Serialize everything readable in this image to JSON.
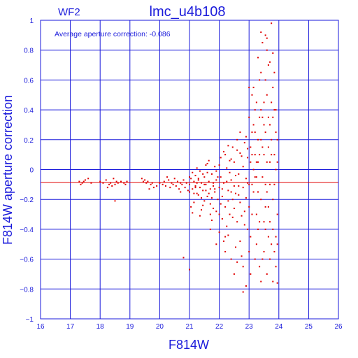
{
  "chart_data": {
    "type": "scatter",
    "title": "lmc_u4b108",
    "panel_label": "WF2",
    "annotation": "Average aperture correction: -0.086",
    "xlabel": "F814W",
    "ylabel": "F814W aperture correction",
    "xlim": [
      16,
      26
    ],
    "ylim": [
      -1,
      1
    ],
    "x_ticks": [
      16,
      17,
      18,
      19,
      20,
      21,
      22,
      23,
      24,
      25,
      26
    ],
    "y_ticks": [
      -1,
      -0.8,
      -0.6,
      -0.4,
      -0.2,
      0,
      0.2,
      0.4,
      0.6,
      0.8,
      1
    ],
    "x_tick_labels": [
      "16",
      "17",
      "18",
      "19",
      "20",
      "21",
      "22",
      "23",
      "24",
      "25",
      "26"
    ],
    "y_tick_labels": [
      "−1",
      "−0.8",
      "−0.6",
      "−0.4",
      "−0.2",
      "0",
      "0.2",
      "0.4",
      "0.6",
      "0.8",
      "1"
    ],
    "grid": true,
    "reference_line_y": -0.086,
    "colors": {
      "axes": "#1a1adb",
      "points": "#e00000",
      "reference_line": "#e00000",
      "background": "#ffffff"
    },
    "points": [
      [
        17.3,
        -0.08
      ],
      [
        17.4,
        -0.09
      ],
      [
        17.5,
        -0.07
      ],
      [
        17.6,
        -0.06
      ],
      [
        17.35,
        -0.1
      ],
      [
        17.45,
        -0.08
      ],
      [
        17.7,
        -0.09
      ],
      [
        18.0,
        -0.08
      ],
      [
        18.1,
        -0.09
      ],
      [
        18.2,
        -0.07
      ],
      [
        18.3,
        -0.1
      ],
      [
        18.35,
        -0.09
      ],
      [
        18.4,
        -0.11
      ],
      [
        18.45,
        -0.06
      ],
      [
        18.5,
        -0.1
      ],
      [
        18.55,
        -0.08
      ],
      [
        18.6,
        -0.09
      ],
      [
        18.7,
        -0.08
      ],
      [
        18.8,
        -0.09
      ],
      [
        18.9,
        -0.08
      ],
      [
        18.25,
        -0.12
      ],
      [
        18.5,
        -0.21
      ],
      [
        18.85,
        -0.1
      ],
      [
        19.4,
        -0.06
      ],
      [
        19.5,
        -0.07
      ],
      [
        19.55,
        -0.09
      ],
      [
        19.6,
        -0.08
      ],
      [
        19.7,
        -0.1
      ],
      [
        19.8,
        -0.12
      ],
      [
        19.9,
        -0.11
      ],
      [
        19.65,
        -0.13
      ],
      [
        19.75,
        -0.09
      ],
      [
        19.45,
        -0.08
      ],
      [
        20.0,
        -0.09
      ],
      [
        20.1,
        -0.1
      ],
      [
        20.15,
        -0.08
      ],
      [
        20.2,
        -0.11
      ],
      [
        20.3,
        -0.07
      ],
      [
        20.35,
        -0.12
      ],
      [
        20.4,
        -0.09
      ],
      [
        20.45,
        -0.1
      ],
      [
        20.5,
        -0.06
      ],
      [
        20.55,
        -0.11
      ],
      [
        20.6,
        -0.08
      ],
      [
        20.65,
        -0.13
      ],
      [
        20.7,
        -0.09
      ],
      [
        20.75,
        -0.1
      ],
      [
        20.8,
        -0.07
      ],
      [
        20.85,
        -0.12
      ],
      [
        20.9,
        -0.09
      ],
      [
        20.95,
        -0.14
      ],
      [
        20.25,
        -0.05
      ],
      [
        20.7,
        -0.15
      ],
      [
        20.8,
        -0.59
      ],
      [
        21.0,
        -0.1
      ],
      [
        21.05,
        -0.06
      ],
      [
        21.1,
        -0.13
      ],
      [
        21.15,
        -0.08
      ],
      [
        21.2,
        -0.11
      ],
      [
        21.25,
        -0.16
      ],
      [
        21.3,
        -0.07
      ],
      [
        21.35,
        -0.12
      ],
      [
        21.4,
        -0.09
      ],
      [
        21.45,
        -0.14
      ],
      [
        21.5,
        -0.05
      ],
      [
        21.55,
        -0.1
      ],
      [
        21.6,
        -0.18
      ],
      [
        21.65,
        -0.08
      ],
      [
        21.7,
        -0.13
      ],
      [
        21.75,
        -0.03
      ],
      [
        21.8,
        -0.11
      ],
      [
        21.85,
        -0.15
      ],
      [
        21.9,
        -0.07
      ],
      [
        21.95,
        -0.2
      ],
      [
        21.1,
        -0.02
      ],
      [
        21.3,
        -0.17
      ],
      [
        21.5,
        -0.21
      ],
      [
        21.7,
        -0.23
      ],
      [
        21.9,
        -0.01
      ],
      [
        21.2,
        -0.04
      ],
      [
        21.4,
        -0.19
      ],
      [
        21.6,
        -0.02
      ],
      [
        21.8,
        -0.26
      ],
      [
        21.0,
        -0.15
      ],
      [
        21.25,
        -0.09
      ],
      [
        21.45,
        -0.03
      ],
      [
        21.65,
        -0.16
      ],
      [
        21.85,
        0.02
      ],
      [
        21.15,
        -0.22
      ],
      [
        21.35,
        -0.01
      ],
      [
        21.55,
        -0.14
      ],
      [
        21.75,
        -0.19
      ],
      [
        21.95,
        -0.05
      ],
      [
        21.05,
        -0.25
      ],
      [
        21.6,
        0.04
      ],
      [
        21.9,
        -0.28
      ],
      [
        21.4,
        -0.27
      ],
      [
        21.7,
        -0.3
      ],
      [
        21.2,
        -0.12
      ],
      [
        21.5,
        -0.1
      ],
      [
        21.8,
        -0.09
      ],
      [
        21.65,
        0.06
      ],
      [
        21.35,
        -0.31
      ],
      [
        21.1,
        -0.29
      ],
      [
        21.75,
        -0.34
      ],
      [
        21.0,
        -0.05
      ],
      [
        21.25,
        0.01
      ],
      [
        21.45,
        -0.24
      ],
      [
        21.15,
        -0.16
      ],
      [
        21.55,
        0.03
      ],
      [
        21.0,
        -0.67
      ],
      [
        21.9,
        -0.5
      ],
      [
        21.7,
        -0.4
      ],
      [
        21.3,
        -0.06
      ],
      [
        21.85,
        -0.13
      ],
      [
        22.0,
        -0.12
      ],
      [
        22.05,
        -0.05
      ],
      [
        22.1,
        -0.18
      ],
      [
        22.15,
        -0.09
      ],
      [
        22.2,
        -0.25
      ],
      [
        22.25,
        0.01
      ],
      [
        22.3,
        -0.14
      ],
      [
        22.35,
        -0.3
      ],
      [
        22.4,
        -0.07
      ],
      [
        22.45,
        -0.2
      ],
      [
        22.5,
        0.05
      ],
      [
        22.55,
        -0.16
      ],
      [
        22.6,
        -0.35
      ],
      [
        22.65,
        -0.03
      ],
      [
        22.7,
        -0.22
      ],
      [
        22.75,
        0.09
      ],
      [
        22.8,
        -0.12
      ],
      [
        22.85,
        -0.28
      ],
      [
        22.9,
        -0.06
      ],
      [
        22.95,
        -0.4
      ],
      [
        22.0,
        0.03
      ],
      [
        22.1,
        -0.33
      ],
      [
        22.2,
        0.1
      ],
      [
        22.3,
        -0.44
      ],
      [
        22.4,
        0.07
      ],
      [
        22.5,
        -0.26
      ],
      [
        22.6,
        0.13
      ],
      [
        22.7,
        -0.48
      ],
      [
        22.8,
        0.02
      ],
      [
        22.9,
        -0.19
      ],
      [
        22.05,
        -0.23
      ],
      [
        22.15,
        0.12
      ],
      [
        22.25,
        -0.38
      ],
      [
        22.35,
        -0.02
      ],
      [
        22.45,
        0.15
      ],
      [
        22.55,
        -0.52
      ],
      [
        22.65,
        -0.11
      ],
      [
        22.75,
        -0.31
      ],
      [
        22.85,
        0.18
      ],
      [
        22.95,
        -0.09
      ],
      [
        22.0,
        -0.42
      ],
      [
        22.2,
        -0.55
      ],
      [
        22.4,
        -0.6
      ],
      [
        22.6,
        0.2
      ],
      [
        22.8,
        -0.65
      ],
      [
        22.3,
        0.16
      ],
      [
        22.5,
        -0.7
      ],
      [
        22.7,
        0.11
      ],
      [
        22.9,
        0.22
      ],
      [
        22.15,
        -0.48
      ],
      [
        22.35,
        0.06
      ],
      [
        22.55,
        -0.04
      ],
      [
        22.75,
        -0.58
      ],
      [
        22.95,
        0.08
      ],
      [
        22.1,
        -0.13
      ],
      [
        22.45,
        -0.32
      ],
      [
        22.65,
        -0.17
      ],
      [
        22.85,
        -0.37
      ],
      [
        22.25,
        -0.08
      ],
      [
        22.05,
        0.08
      ],
      [
        22.9,
        -0.78
      ],
      [
        22.8,
        -0.82
      ],
      [
        22.2,
        -0.45
      ],
      [
        22.6,
        -0.62
      ],
      [
        22.4,
        -0.15
      ],
      [
        22.7,
        0.25
      ],
      [
        22.95,
        0.14
      ],
      [
        22.3,
        -0.21
      ],
      [
        22.5,
        -0.11
      ],
      [
        22.0,
        -0.3
      ],
      [
        23.0,
        -0.1
      ],
      [
        23.05,
        0.15
      ],
      [
        23.1,
        -0.3
      ],
      [
        23.15,
        0.3
      ],
      [
        23.2,
        -0.05
      ],
      [
        23.25,
        0.45
      ],
      [
        23.3,
        -0.4
      ],
      [
        23.35,
        0.6
      ],
      [
        23.4,
        -0.2
      ],
      [
        23.45,
        0.85
      ],
      [
        23.5,
        -0.55
      ],
      [
        23.55,
        0.25
      ],
      [
        23.6,
        -0.7
      ],
      [
        23.65,
        0.7
      ],
      [
        23.7,
        0.05
      ],
      [
        23.75,
        0.98
      ],
      [
        23.8,
        -0.75
      ],
      [
        23.85,
        0.4
      ],
      [
        23.9,
        -0.45
      ],
      [
        23.95,
        0.2
      ],
      [
        23.0,
        0.35
      ],
      [
        23.1,
        0.5
      ],
      [
        23.2,
        -0.6
      ],
      [
        23.3,
        0.2
      ],
      [
        23.4,
        0.65
      ],
      [
        23.5,
        0.1
      ],
      [
        23.6,
        0.5
      ],
      [
        23.7,
        -0.35
      ],
      [
        23.8,
        0.55
      ],
      [
        23.9,
        0.0
      ],
      [
        23.05,
        -0.45
      ],
      [
        23.15,
        -0.15
      ],
      [
        23.25,
        0.05
      ],
      [
        23.35,
        -0.65
      ],
      [
        23.45,
        0.35
      ],
      [
        23.55,
        -0.25
      ],
      [
        23.65,
        0.15
      ],
      [
        23.75,
        -0.5
      ],
      [
        23.85,
        -0.1
      ],
      [
        23.95,
        -0.76
      ],
      [
        23.0,
        -0.25
      ],
      [
        23.1,
        0.1
      ],
      [
        23.2,
        0.25
      ],
      [
        23.3,
        -0.15
      ],
      [
        23.4,
        0.4
      ],
      [
        23.5,
        -0.35
      ],
      [
        23.6,
        0.8
      ],
      [
        23.7,
        0.3
      ],
      [
        23.8,
        -0.2
      ],
      [
        23.9,
        0.25
      ],
      [
        23.05,
        -0.7
      ],
      [
        23.15,
        0.55
      ],
      [
        23.25,
        -0.5
      ],
      [
        23.35,
        0.1
      ],
      [
        23.45,
        -0.05
      ],
      [
        23.55,
        0.6
      ],
      [
        23.65,
        -0.45
      ],
      [
        23.75,
        0.45
      ],
      [
        23.85,
        0.1
      ],
      [
        23.95,
        -0.3
      ],
      [
        23.0,
        0.55
      ],
      [
        23.2,
        0.4
      ],
      [
        23.4,
        -0.75
      ],
      [
        23.6,
        -0.15
      ],
      [
        23.8,
        0.35
      ],
      [
        23.3,
        0.75
      ],
      [
        23.5,
        0.45
      ],
      [
        23.7,
        -0.6
      ],
      [
        23.9,
        -0.65
      ],
      [
        23.1,
        -0.1
      ],
      [
        23.25,
        -0.3
      ],
      [
        23.45,
        0.15
      ],
      [
        23.65,
        0.35
      ],
      [
        23.85,
        0.65
      ],
      [
        23.55,
        -0.1
      ],
      [
        23.75,
        0.2
      ],
      [
        23.35,
        -0.35
      ],
      [
        23.15,
        0.0
      ],
      [
        23.95,
        0.05
      ],
      [
        23.0,
        -0.55
      ],
      [
        23.4,
        0.2
      ],
      [
        23.6,
        0.05
      ],
      [
        23.8,
        -0.4
      ],
      [
        23.3,
        0.05
      ],
      [
        23.5,
        0.3
      ],
      [
        23.7,
        -0.1
      ],
      [
        23.9,
        0.4
      ],
      [
        23.2,
        0.1
      ],
      [
        23.45,
        -0.6
      ],
      [
        23.65,
        -0.25
      ],
      [
        23.85,
        -0.55
      ],
      [
        23.1,
        0.25
      ],
      [
        23.35,
        0.35
      ],
      [
        23.55,
        -0.4
      ],
      [
        23.75,
        0.1
      ],
      [
        23.25,
        -0.05
      ],
      [
        23.05,
        0.05
      ],
      [
        23.95,
        -0.5
      ],
      [
        23.55,
        0.9
      ],
      [
        23.4,
        0.92
      ],
      [
        23.6,
        0.88
      ],
      [
        23.8,
        0.78
      ],
      [
        23.7,
        0.72
      ]
    ]
  }
}
